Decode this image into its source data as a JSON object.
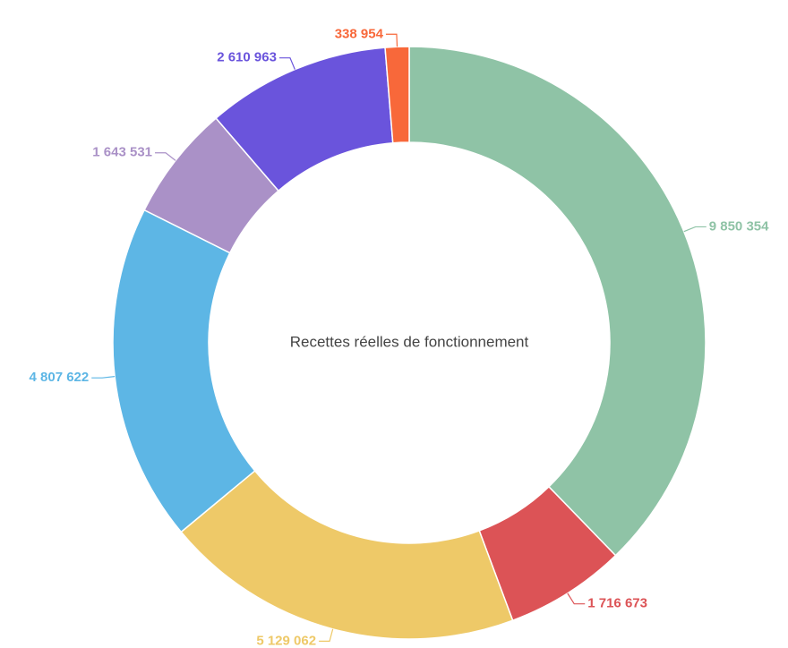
{
  "chart_data": {
    "type": "donut",
    "title": "Recettes réelles de fonctionnement",
    "categories": [
      null,
      null,
      null,
      null,
      null,
      null,
      null
    ],
    "values": [
      9850354,
      1716673,
      5129062,
      4807622,
      1643531,
      2610963,
      338954
    ],
    "value_labels": [
      "9 850 354",
      "1 716 673",
      "5 129 062",
      "4 807 622",
      "1 643 531",
      "2 610 963",
      "338 954"
    ],
    "colors": [
      "#8fc3a6",
      "#dc5356",
      "#eec968",
      "#5db6e5",
      "#aa91c7",
      "#6a54dc",
      "#f8683a"
    ]
  }
}
